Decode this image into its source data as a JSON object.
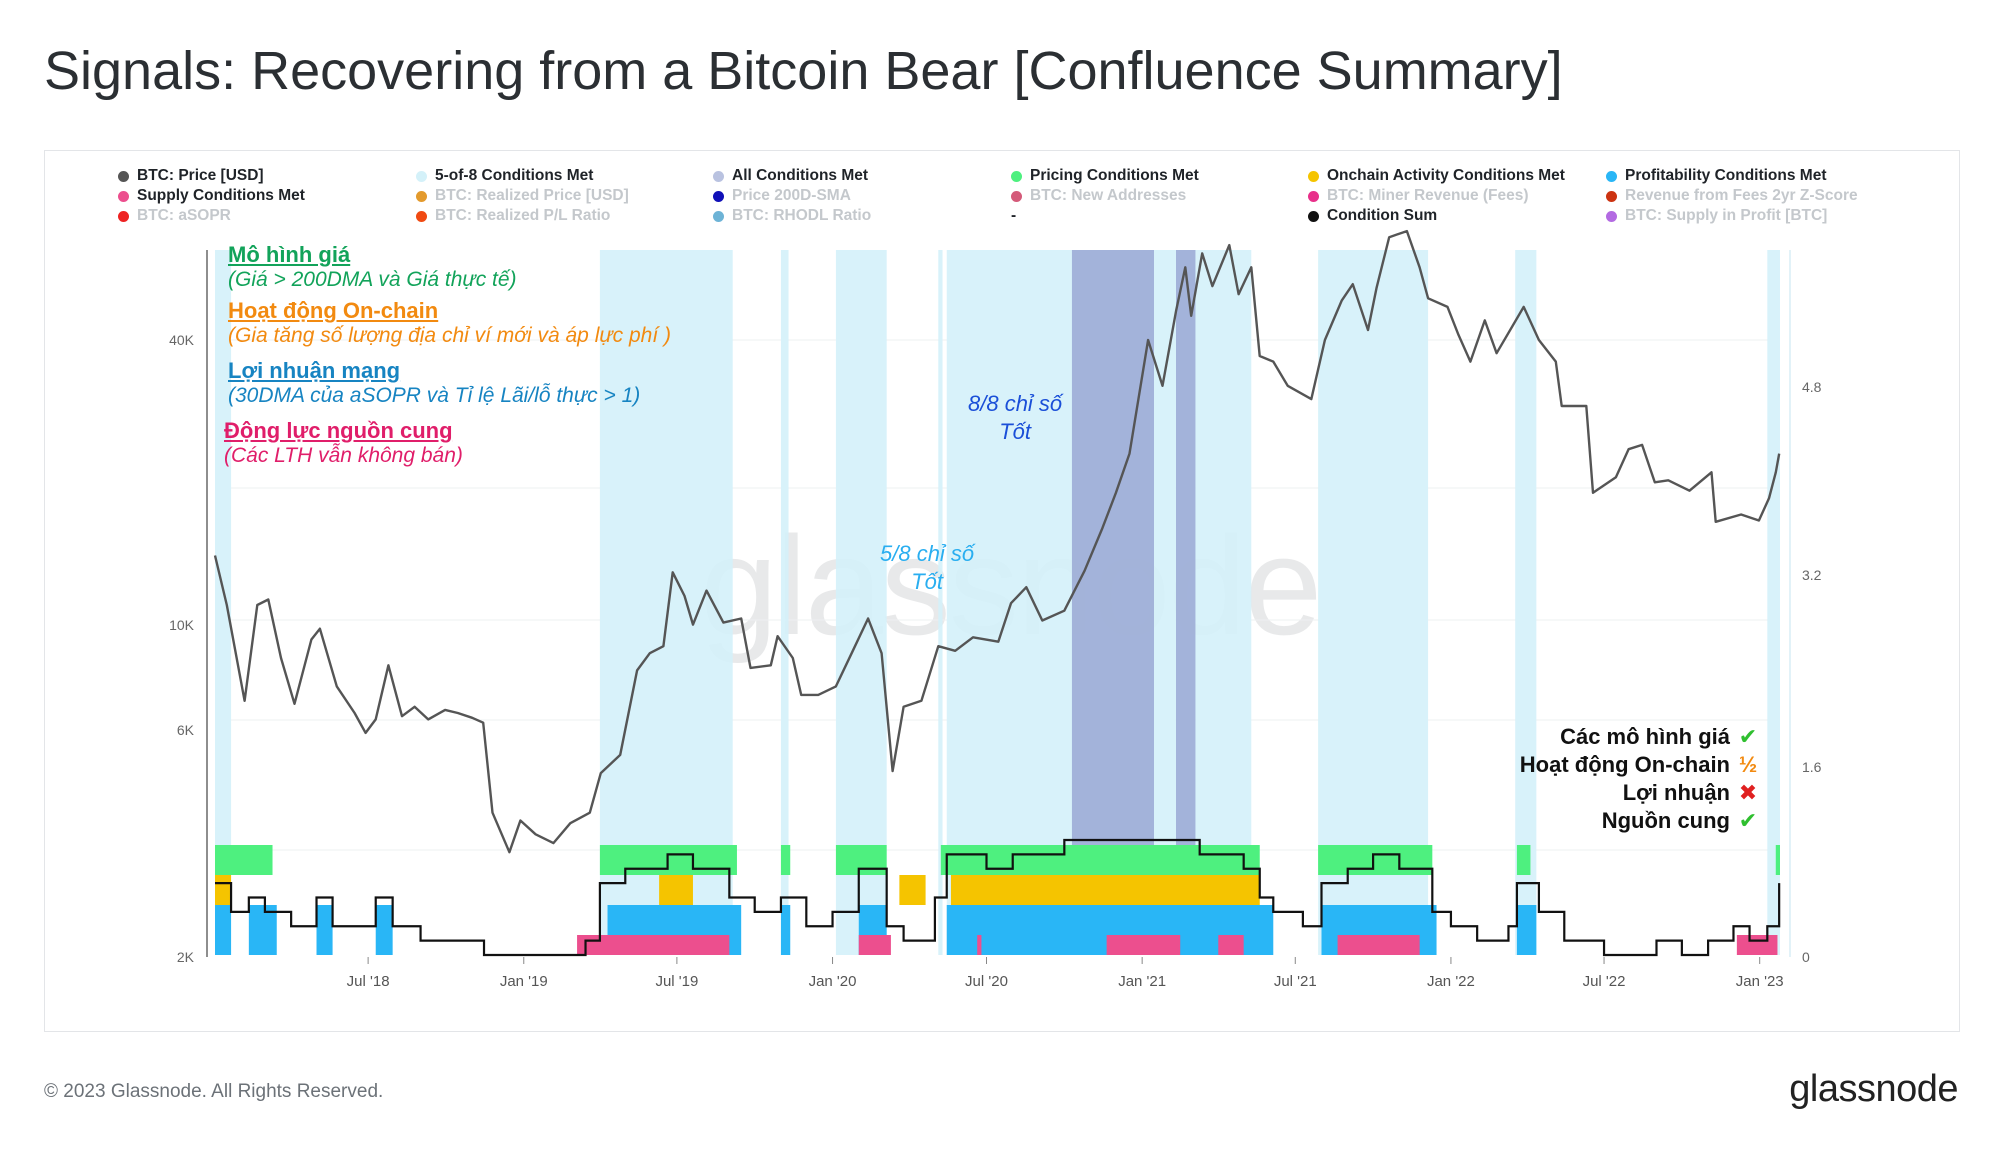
{
  "title": "Signals: Recovering from a Bitcoin Bear [Confluence Summary]",
  "footer": "© 2023 Glassnode. All Rights Reserved.",
  "brand": "glassnode",
  "watermark": "glassnode",
  "legend": [
    {
      "label": "BTC: Price [USD]",
      "color": "#555555",
      "active": true
    },
    {
      "label": "5-of-8 Conditions Met",
      "color": "#d4f1f9",
      "active": true
    },
    {
      "label": "All Conditions Met",
      "color": "#b9c2e0",
      "active": true
    },
    {
      "label": "Pricing Conditions Met",
      "color": "#4ef07f",
      "active": true
    },
    {
      "label": "Onchain Activity Conditions Met",
      "color": "#f5c400",
      "active": true
    },
    {
      "label": "Profitability Conditions Met",
      "color": "#29b6f6",
      "active": true
    },
    {
      "label": "Supply Conditions Met",
      "color": "#ec4f8e",
      "active": true
    },
    {
      "label": "BTC: Realized Price [USD]",
      "color": "#e39a2d",
      "active": false
    },
    {
      "label": "Price 200D-SMA",
      "color": "#1010b8",
      "active": false
    },
    {
      "label": "BTC: New Addresses",
      "color": "#d45a79",
      "active": false
    },
    {
      "label": "BTC: Miner Revenue (Fees)",
      "color": "#e8308a",
      "active": false
    },
    {
      "label": "Revenue from Fees 2yr Z-Score",
      "color": "#cc3311",
      "active": false
    },
    {
      "label": "BTC: aSOPR",
      "color": "#ee2222",
      "active": false
    },
    {
      "label": "BTC: Realized P/L Ratio",
      "color": "#f04a12",
      "active": false
    },
    {
      "label": "BTC: RHODL Ratio",
      "color": "#6db3d6",
      "active": false
    },
    {
      "label": "-",
      "color": "",
      "active": true
    },
    {
      "label": "Condition Sum",
      "color": "#111111",
      "active": true
    },
    {
      "label": "BTC: Supply in Profit [BTC]",
      "color": "#b36ae2",
      "active": false
    }
  ],
  "annotations": [
    {
      "heading": "Mô hình giá",
      "sub": "(Giá > 200DMA và Giá thực tế)",
      "color": "#12a35a"
    },
    {
      "heading": "Hoạt động On-chain",
      "sub": "(Gia tăng số lượng địa chỉ ví mới và áp lực phí )",
      "color": "#f28a10"
    },
    {
      "heading": "Lợi nhuận mạng",
      "sub": "(30DMA của aSOPR và Tỉ lệ Lãi/lỗ thực > 1)",
      "color": "#1784c2"
    },
    {
      "heading": "Động lực nguồn cung",
      "sub": "(Các LTH vẫn không bán)",
      "color": "#e01e6a"
    }
  ],
  "chart_annotations": {
    "five_of_eight": {
      "line1": "5/8 chỉ số",
      "line2": "Tốt",
      "color": "#29aef0"
    },
    "eight_of_eight": {
      "line1": "8/8 chỉ số",
      "line2": "Tốt",
      "color": "#1a4fd8"
    }
  },
  "checklist": [
    {
      "label": "Các mô hình giá",
      "mark": "✔",
      "color": "#2fbf2f"
    },
    {
      "label": "Hoạt động On-chain",
      "mark": "½",
      "color": "#f28a10"
    },
    {
      "label": "Lợi nhuận",
      "mark": "✖",
      "color": "#e02020"
    },
    {
      "label": "Nguồn cung",
      "mark": "✔",
      "color": "#2fbf2f"
    }
  ],
  "chart_data": {
    "type": "line",
    "x_ticks": [
      "Jul '18",
      "Jan '19",
      "Jul '19",
      "Jan '20",
      "Jul '20",
      "Jan '21",
      "Jul '21",
      "Jan '22",
      "Jul '22",
      "Jan '23"
    ],
    "y_left_ticks": [
      "2K",
      "6K",
      "10K",
      "40K"
    ],
    "y_left_scale": "log",
    "y_right_ticks": [
      "0",
      "1.6",
      "3.2",
      "4.8"
    ],
    "x_range": [
      "2018-01-01",
      "2023-01-25"
    ],
    "price_series": {
      "name": "BTC: Price [USD]",
      "points": [
        [
          "2018-01-01",
          14000
        ],
        [
          "2018-01-15",
          11000
        ],
        [
          "2018-02-05",
          6900
        ],
        [
          "2018-02-20",
          11000
        ],
        [
          "2018-03-05",
          11300
        ],
        [
          "2018-03-20",
          8500
        ],
        [
          "2018-04-05",
          6800
        ],
        [
          "2018-04-25",
          9300
        ],
        [
          "2018-05-05",
          9800
        ],
        [
          "2018-05-25",
          7400
        ],
        [
          "2018-06-15",
          6500
        ],
        [
          "2018-06-28",
          5900
        ],
        [
          "2018-07-10",
          6300
        ],
        [
          "2018-07-25",
          8200
        ],
        [
          "2018-08-10",
          6400
        ],
        [
          "2018-08-25",
          6700
        ],
        [
          "2018-09-10",
          6300
        ],
        [
          "2018-09-30",
          6600
        ],
        [
          "2018-10-15",
          6500
        ],
        [
          "2018-11-01",
          6350
        ],
        [
          "2018-11-14",
          6200
        ],
        [
          "2018-11-25",
          4000
        ],
        [
          "2018-12-15",
          3300
        ],
        [
          "2018-12-28",
          3850
        ],
        [
          "2019-01-15",
          3600
        ],
        [
          "2019-02-05",
          3450
        ],
        [
          "2019-02-25",
          3800
        ],
        [
          "2019-03-20",
          4000
        ],
        [
          "2019-04-02",
          4850
        ],
        [
          "2019-04-25",
          5300
        ],
        [
          "2019-05-15",
          8000
        ],
        [
          "2019-05-30",
          8700
        ],
        [
          "2019-06-15",
          9000
        ],
        [
          "2019-06-26",
          12900
        ],
        [
          "2019-07-10",
          11500
        ],
        [
          "2019-07-20",
          10000
        ],
        [
          "2019-08-05",
          11800
        ],
        [
          "2019-08-25",
          10100
        ],
        [
          "2019-09-15",
          10300
        ],
        [
          "2019-09-26",
          8100
        ],
        [
          "2019-10-20",
          8200
        ],
        [
          "2019-10-28",
          9450
        ],
        [
          "2019-11-15",
          8500
        ],
        [
          "2019-11-25",
          7100
        ],
        [
          "2019-12-15",
          7100
        ],
        [
          "2020-01-05",
          7400
        ],
        [
          "2020-01-25",
          8800
        ],
        [
          "2020-02-12",
          10300
        ],
        [
          "2020-02-28",
          8700
        ],
        [
          "2020-03-12",
          4900
        ],
        [
          "2020-03-25",
          6700
        ],
        [
          "2020-04-15",
          6900
        ],
        [
          "2020-05-05",
          9000
        ],
        [
          "2020-05-25",
          8800
        ],
        [
          "2020-06-15",
          9400
        ],
        [
          "2020-07-15",
          9200
        ],
        [
          "2020-07-30",
          11100
        ],
        [
          "2020-08-17",
          12000
        ],
        [
          "2020-09-05",
          10200
        ],
        [
          "2020-10-01",
          10700
        ],
        [
          "2020-10-25",
          13000
        ],
        [
          "2020-11-15",
          16000
        ],
        [
          "2020-12-01",
          19000
        ],
        [
          "2020-12-17",
          23000
        ],
        [
          "2021-01-08",
          40000
        ],
        [
          "2021-01-25",
          32000
        ],
        [
          "2021-02-10",
          46000
        ],
        [
          "2021-02-21",
          57000
        ],
        [
          "2021-02-28",
          45000
        ],
        [
          "2021-03-13",
          61000
        ],
        [
          "2021-03-25",
          52000
        ],
        [
          "2021-04-14",
          63500
        ],
        [
          "2021-04-25",
          50000
        ],
        [
          "2021-05-10",
          57000
        ],
        [
          "2021-05-20",
          37000
        ],
        [
          "2021-06-05",
          36000
        ],
        [
          "2021-06-22",
          32000
        ],
        [
          "2021-07-20",
          30000
        ],
        [
          "2021-08-05",
          40000
        ],
        [
          "2021-08-25",
          48500
        ],
        [
          "2021-09-07",
          52500
        ],
        [
          "2021-09-25",
          42000
        ],
        [
          "2021-10-05",
          51500
        ],
        [
          "2021-10-20",
          66000
        ],
        [
          "2021-11-10",
          68000
        ],
        [
          "2021-11-25",
          57000
        ],
        [
          "2021-12-05",
          49000
        ],
        [
          "2021-12-28",
          47000
        ],
        [
          "2022-01-10",
          41000
        ],
        [
          "2022-01-24",
          36000
        ],
        [
          "2022-02-10",
          44000
        ],
        [
          "2022-02-24",
          37500
        ],
        [
          "2022-03-28",
          47000
        ],
        [
          "2022-04-15",
          40000
        ],
        [
          "2022-05-05",
          36000
        ],
        [
          "2022-05-12",
          29000
        ],
        [
          "2022-06-10",
          29000
        ],
        [
          "2022-06-18",
          19000
        ],
        [
          "2022-07-15",
          20500
        ],
        [
          "2022-07-30",
          23500
        ],
        [
          "2022-08-15",
          24000
        ],
        [
          "2022-08-30",
          20000
        ],
        [
          "2022-09-15",
          20200
        ],
        [
          "2022-10-10",
          19200
        ],
        [
          "2022-11-05",
          21000
        ],
        [
          "2022-11-10",
          16500
        ],
        [
          "2022-12-10",
          17100
        ],
        [
          "2022-12-31",
          16600
        ],
        [
          "2023-01-12",
          18500
        ],
        [
          "2023-01-20",
          21000
        ],
        [
          "2023-01-24",
          23000
        ]
      ]
    },
    "condition_periods": {
      "five_of_eight": [
        [
          "2018-01-01",
          "2018-01-20"
        ],
        [
          "2019-04-01",
          "2019-09-05"
        ],
        [
          "2019-11-01",
          "2019-11-10"
        ],
        [
          "2020-01-05",
          "2020-03-05"
        ],
        [
          "2020-05-05",
          "2020-05-10"
        ],
        [
          "2020-05-15",
          "2021-05-10"
        ],
        [
          "2021-07-28",
          "2021-12-05"
        ],
        [
          "2022-03-18",
          "2022-04-12"
        ],
        [
          "2023-01-10",
          "2023-01-25"
        ]
      ],
      "all_conditions": [
        [
          "2020-10-10",
          "2021-01-15"
        ],
        [
          "2021-02-10",
          "2021-03-05"
        ]
      ]
    },
    "condition_sum": {
      "name": "Condition Sum",
      "y_max": 8,
      "points": [
        [
          "2018-01-01",
          5
        ],
        [
          "2018-01-20",
          3
        ],
        [
          "2018-02-10",
          4
        ],
        [
          "2018-03-01",
          3
        ],
        [
          "2018-04-01",
          2
        ],
        [
          "2018-05-01",
          4
        ],
        [
          "2018-05-20",
          2
        ],
        [
          "2018-07-10",
          4
        ],
        [
          "2018-07-30",
          2
        ],
        [
          "2018-09-01",
          1
        ],
        [
          "2018-11-15",
          0
        ],
        [
          "2019-02-01",
          0
        ],
        [
          "2019-03-15",
          1
        ],
        [
          "2019-04-01",
          5
        ],
        [
          "2019-05-01",
          6
        ],
        [
          "2019-06-20",
          7
        ],
        [
          "2019-07-20",
          6
        ],
        [
          "2019-09-01",
          4
        ],
        [
          "2019-10-01",
          3
        ],
        [
          "2019-11-01",
          4
        ],
        [
          "2019-12-01",
          2
        ],
        [
          "2020-01-01",
          3
        ],
        [
          "2020-02-01",
          6
        ],
        [
          "2020-03-05",
          2
        ],
        [
          "2020-03-25",
          1
        ],
        [
          "2020-05-01",
          4
        ],
        [
          "2020-05-15",
          7
        ],
        [
          "2020-07-01",
          6
        ],
        [
          "2020-08-01",
          7
        ],
        [
          "2020-10-01",
          8
        ],
        [
          "2021-03-10",
          7
        ],
        [
          "2021-05-01",
          6
        ],
        [
          "2021-05-20",
          4
        ],
        [
          "2021-06-05",
          3
        ],
        [
          "2021-07-10",
          2
        ],
        [
          "2021-08-01",
          5
        ],
        [
          "2021-09-01",
          6
        ],
        [
          "2021-10-01",
          7
        ],
        [
          "2021-11-01",
          6
        ],
        [
          "2021-12-10",
          3
        ],
        [
          "2022-01-01",
          2
        ],
        [
          "2022-02-01",
          1
        ],
        [
          "2022-03-10",
          2
        ],
        [
          "2022-03-20",
          5
        ],
        [
          "2022-04-15",
          3
        ],
        [
          "2022-05-15",
          1
        ],
        [
          "2022-07-01",
          0
        ],
        [
          "2022-09-01",
          1
        ],
        [
          "2022-10-01",
          0
        ],
        [
          "2022-11-01",
          1
        ],
        [
          "2022-12-01",
          2
        ],
        [
          "2022-12-20",
          1
        ],
        [
          "2023-01-10",
          2
        ],
        [
          "2023-01-24",
          5
        ]
      ]
    }
  }
}
